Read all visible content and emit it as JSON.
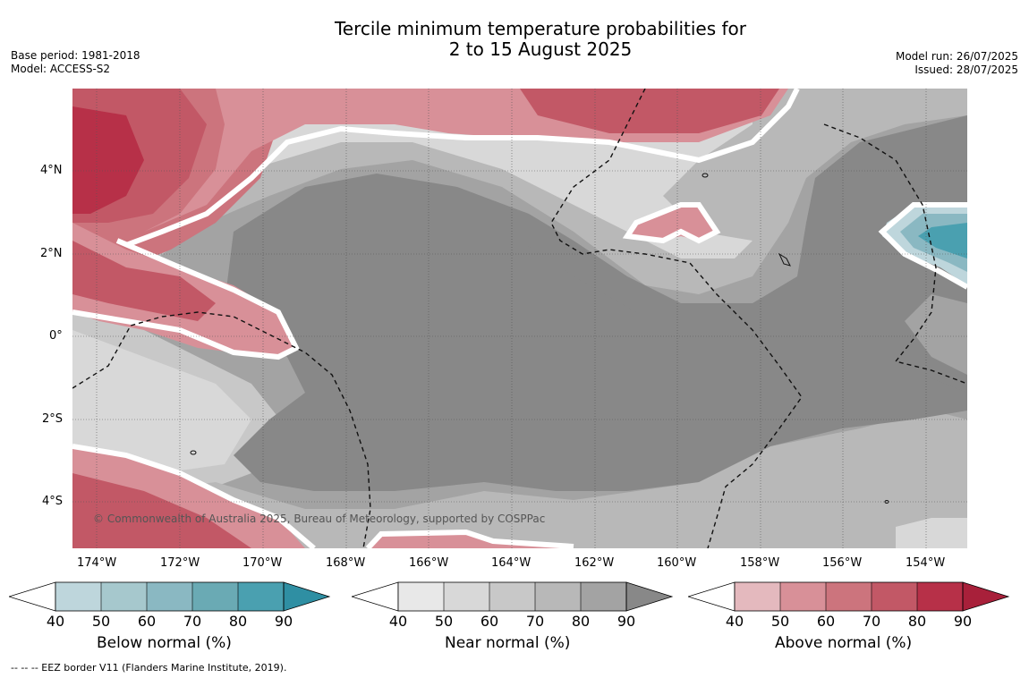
{
  "title_line1": "Tercile minimum temperature probabilities for",
  "title_line2": "2 to 15 August 2025",
  "base_period": "Base period: 1981-2018",
  "model": "Model: ACCESS-S2",
  "model_run": "Model run: 26/07/2025",
  "issued": "Issued: 28/07/2025",
  "credit": "© Commonwealth of Australia 2025, Bureau of Meteorology, supported by COSPPac",
  "footnote": "--  --  -- EEZ border V11 (Flanders Marine Institute, 2019).",
  "map": {
    "lat_labels": [
      "4°N",
      "2°N",
      "0°",
      "2°S",
      "4°S"
    ],
    "lon_labels": [
      "174°W",
      "172°W",
      "170°W",
      "168°W",
      "166°W",
      "164°W",
      "162°W",
      "160°W",
      "158°W",
      "156°W",
      "154°W"
    ]
  },
  "legends": [
    {
      "label": "Below normal (%)",
      "ticks": [
        "40",
        "50",
        "60",
        "70",
        "80",
        "90"
      ],
      "colors": [
        "#ffffff",
        "#bed6dc",
        "#a6c8cd",
        "#8ab8c2",
        "#6aaab4",
        "#4aa0b0",
        "#2f8fa3"
      ]
    },
    {
      "label": "Near normal (%)",
      "ticks": [
        "40",
        "50",
        "60",
        "70",
        "80",
        "90"
      ],
      "colors": [
        "#ffffff",
        "#e8e8e8",
        "#d8d8d8",
        "#c8c8c8",
        "#b8b8b8",
        "#a3a3a3",
        "#888888"
      ]
    },
    {
      "label": "Above normal (%)",
      "ticks": [
        "40",
        "50",
        "60",
        "70",
        "80",
        "90"
      ],
      "colors": [
        "#ffffff",
        "#e4b9be",
        "#d89098",
        "#cc747d",
        "#c25866",
        "#b73048",
        "#a8203a"
      ]
    }
  ]
}
